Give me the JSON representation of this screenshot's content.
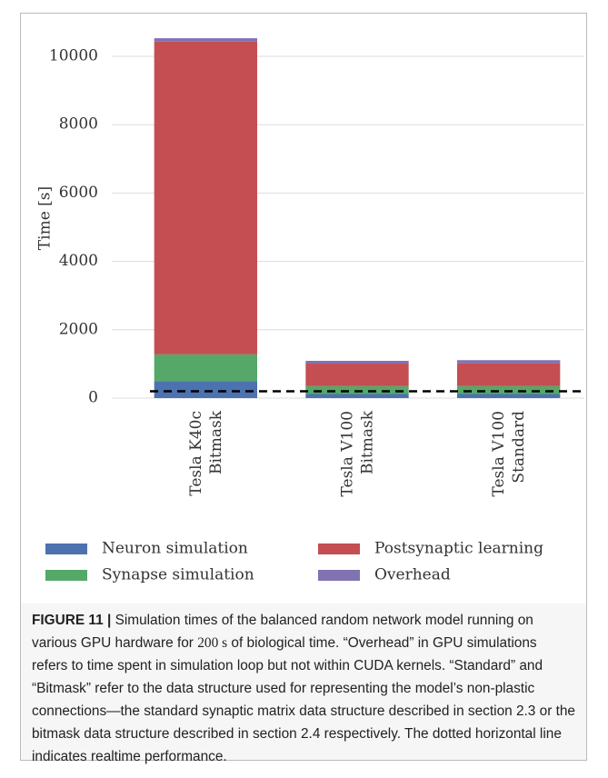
{
  "chart_data": {
    "type": "stacked_bar",
    "ylabel": "Time [s]",
    "categories": [
      [
        "Tesla K40c",
        "Bitmask"
      ],
      [
        "Tesla V100",
        "Bitmask"
      ],
      [
        "Tesla V100",
        "Standard"
      ]
    ],
    "series": [
      {
        "name": "Neuron simulation",
        "color": "#4c72b0",
        "values": [
          500,
          120,
          120
        ]
      },
      {
        "name": "Synapse simulation",
        "color": "#55a868",
        "values": [
          780,
          230,
          230
        ]
      },
      {
        "name": "Postsynaptic learning",
        "color": "#c44e52",
        "values": [
          9150,
          660,
          670
        ]
      },
      {
        "name": "Overhead",
        "color": "#8172b2",
        "values": [
          100,
          80,
          90
        ]
      }
    ],
    "hline": 200,
    "ylim": [
      0,
      11000
    ],
    "yticks": [
      0,
      2000,
      4000,
      6000,
      8000,
      10000
    ],
    "grid": true
  },
  "caption": {
    "label": "FIGURE 11 |",
    "text_before": "Simulation times of the balanced random network model running on various GPU hardware for",
    "time": "200 s",
    "text_after": "of biological time. “Overhead” in GPU simulations refers to time spent in simulation loop but not within CUDA kernels. “Standard” and “Bitmask” refer to the data structure used for representing the model’s non-plastic connections—the standard synaptic matrix data structure described in section 2.3 or the bitmask data structure described in section 2.4 respectively. The dotted horizontal line indicates realtime performance."
  }
}
